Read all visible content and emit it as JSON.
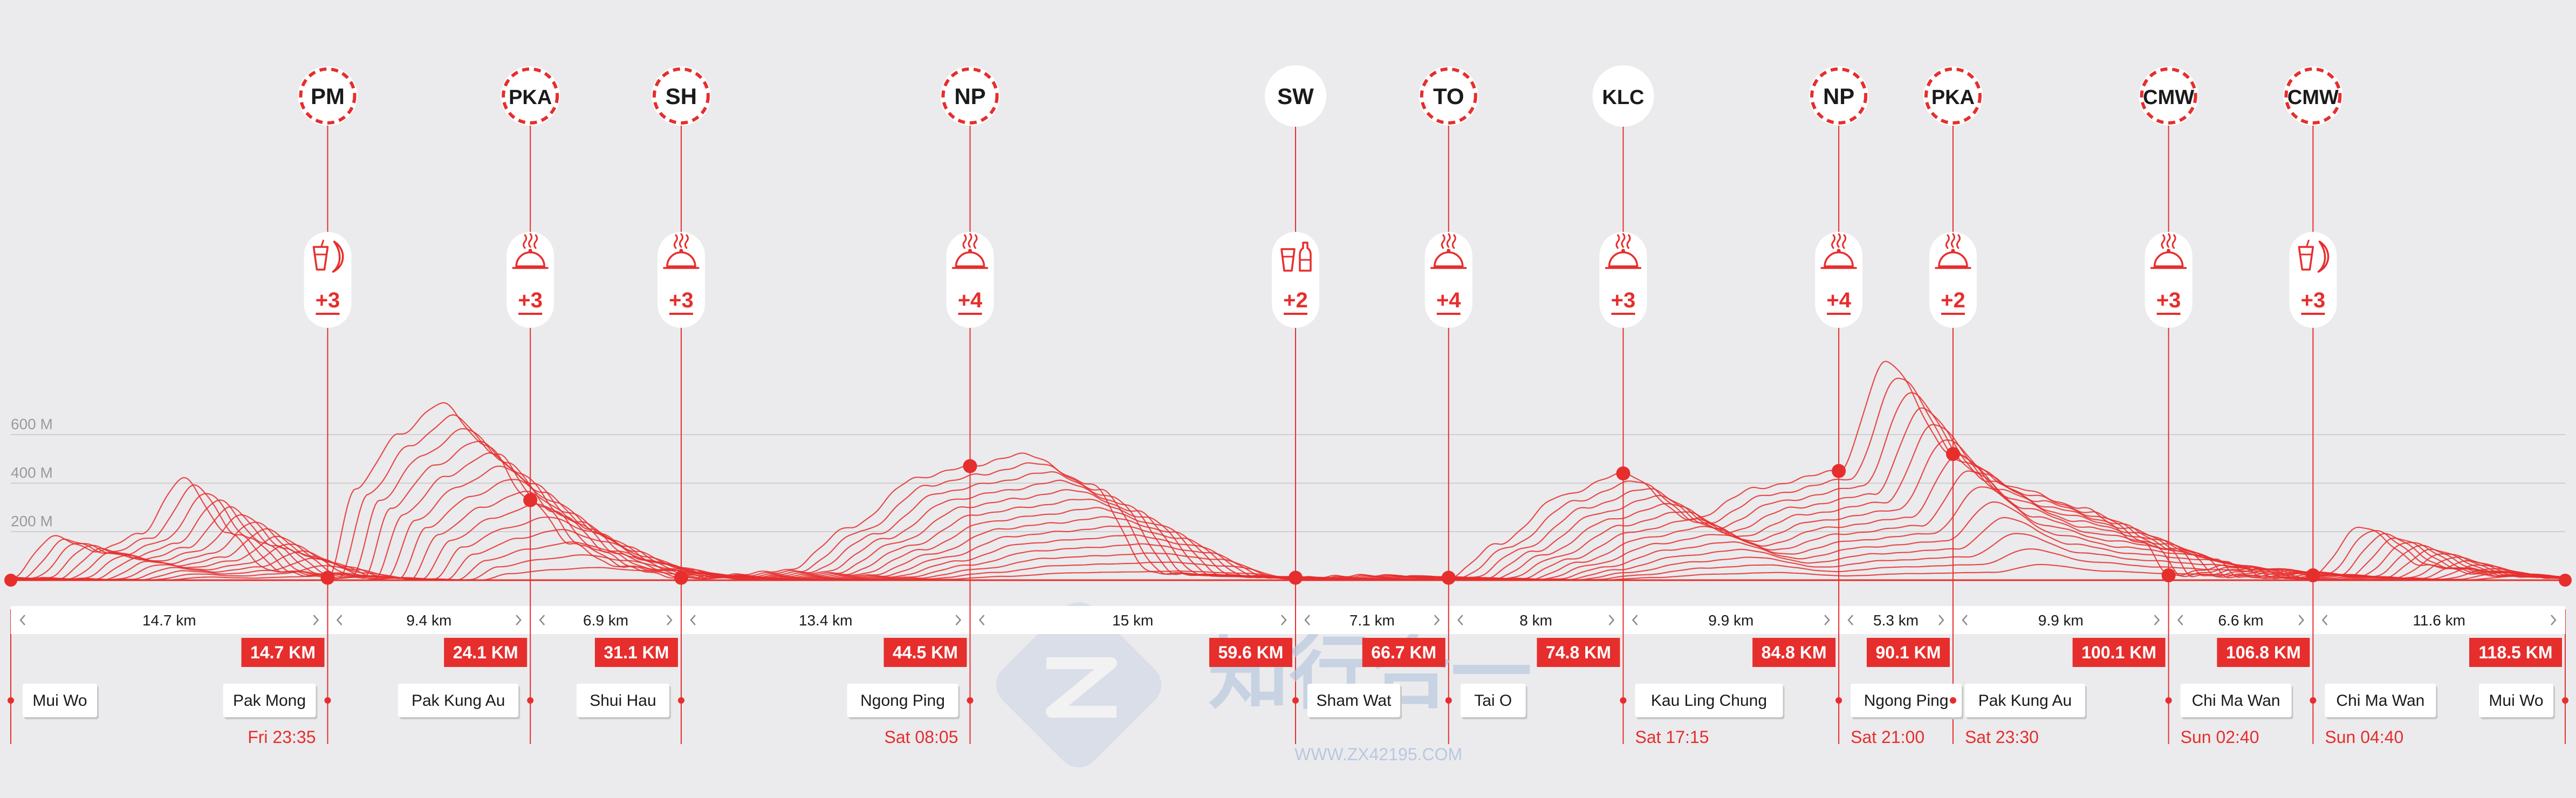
{
  "colors": {
    "background": "#ebebed",
    "accent": "#e62e2d",
    "text_dark": "#1a1a1a",
    "text_muted": "#9a9a9a",
    "grid": "#cfcfcf",
    "checkpoint_border_manned": "#e62e2d",
    "checkpoint_border_unmanned": "#ffffff"
  },
  "elevation_axis": {
    "labels": [
      "600 M",
      "400 M",
      "200 M"
    ],
    "values": [
      600,
      400,
      200
    ],
    "ylim": [
      0,
      800
    ]
  },
  "route": {
    "total_km": 118.5,
    "elevation_profile_km": [
      0,
      2,
      4,
      6,
      8,
      10,
      12,
      14.7,
      16,
      18,
      20,
      22,
      24.1,
      26,
      28,
      31.1,
      33,
      36,
      39,
      42,
      44.5,
      47,
      50,
      53,
      56,
      59.6,
      63,
      66.7,
      69,
      72,
      74.8,
      78,
      81,
      84.8,
      87,
      90.1,
      93,
      96,
      99,
      100.1,
      103,
      106.8,
      109,
      112,
      115,
      118.5
    ],
    "elevation_profile_m": [
      10,
      180,
      120,
      190,
      420,
      200,
      40,
      10,
      380,
      600,
      730,
      560,
      330,
      150,
      60,
      10,
      20,
      40,
      220,
      420,
      470,
      520,
      400,
      30,
      20,
      10,
      20,
      10,
      150,
      350,
      440,
      250,
      380,
      450,
      900,
      520,
      380,
      300,
      150,
      20,
      60,
      20,
      220,
      60,
      20,
      10
    ]
  },
  "checkpoints": [
    {
      "code": "PM",
      "km": 14.7,
      "km_label": "14.7 KM",
      "location": "Pak Mong",
      "time": "Fri 23:35",
      "icon": "drink-banana-icon",
      "count": "+3",
      "manned": true
    },
    {
      "code": "PKA",
      "km": 24.1,
      "km_label": "24.1 KM",
      "location": "Pak Kung Au",
      "time": "",
      "icon": "hot-food-icon",
      "count": "+3",
      "manned": true
    },
    {
      "code": "SH",
      "km": 31.1,
      "km_label": "31.1 KM",
      "location": "Shui Hau",
      "time": "",
      "icon": "hot-food-icon",
      "count": "+3",
      "manned": true
    },
    {
      "code": "NP",
      "km": 44.5,
      "km_label": "44.5 KM",
      "location": "Ngong Ping",
      "time": "Sat 08:05",
      "icon": "hot-food-icon",
      "count": "+4",
      "manned": true
    },
    {
      "code": "SW",
      "km": 59.6,
      "km_label": "59.6 KM",
      "location": "Sham Wat",
      "time": "",
      "icon": "drink-bottle-icon",
      "count": "+2",
      "manned": false
    },
    {
      "code": "TO",
      "km": 66.7,
      "km_label": "66.7 KM",
      "location": "Tai O",
      "time": "",
      "icon": "hot-food-icon",
      "count": "+4",
      "manned": true
    },
    {
      "code": "KLC",
      "km": 74.8,
      "km_label": "74.8 KM",
      "location": "Kau Ling Chung",
      "time": "Sat 17:15",
      "icon": "hot-food-icon",
      "count": "+3",
      "manned": false
    },
    {
      "code": "NP",
      "km": 84.8,
      "km_label": "84.8 KM",
      "location": "Ngong Ping",
      "time": "Sat 21:00",
      "icon": "hot-food-icon",
      "count": "+4",
      "manned": true
    },
    {
      "code": "PKA",
      "km": 90.1,
      "km_label": "90.1 KM",
      "location": "Pak Kung Au",
      "time": "Sat 23:30",
      "icon": "hot-food-icon",
      "count": "+2",
      "manned": true
    },
    {
      "code": "CMW",
      "km": 100.1,
      "km_label": "100.1 KM",
      "location": "Chi Ma Wan",
      "time": "Sun 02:40",
      "icon": "hot-food-icon",
      "count": "+3",
      "manned": true
    },
    {
      "code": "CMW",
      "km": 106.8,
      "km_label": "106.8 KM",
      "location": "Chi Ma Wan",
      "time": "Sun 04:40",
      "icon": "drink-banana-icon",
      "count": "+3",
      "manned": true
    }
  ],
  "start": {
    "location": "Mui Wo",
    "km": 0
  },
  "finish": {
    "location": "Mui Wo",
    "km": 118.5,
    "km_label": "118.5 KM"
  },
  "segments": [
    {
      "from_km": 0,
      "to_km": 14.7,
      "label": "14.7 km"
    },
    {
      "from_km": 14.7,
      "to_km": 24.1,
      "label": "9.4 km"
    },
    {
      "from_km": 24.1,
      "to_km": 31.1,
      "label": "6.9 km"
    },
    {
      "from_km": 31.1,
      "to_km": 44.5,
      "label": "13.4 km"
    },
    {
      "from_km": 44.5,
      "to_km": 59.6,
      "label": "15 km"
    },
    {
      "from_km": 59.6,
      "to_km": 66.7,
      "label": "7.1 km"
    },
    {
      "from_km": 66.7,
      "to_km": 74.8,
      "label": "8 km"
    },
    {
      "from_km": 74.8,
      "to_km": 84.8,
      "label": "9.9 km"
    },
    {
      "from_km": 84.8,
      "to_km": 90.1,
      "label": "5.3 km"
    },
    {
      "from_km": 90.1,
      "to_km": 100.1,
      "label": "9.9 km"
    },
    {
      "from_km": 100.1,
      "to_km": 106.8,
      "label": "6.6 km"
    },
    {
      "from_km": 106.8,
      "to_km": 118.5,
      "label": "11.6 km"
    }
  ],
  "watermark": {
    "url": "WWW.ZX42195.COM",
    "logo_text": "知行合一"
  }
}
